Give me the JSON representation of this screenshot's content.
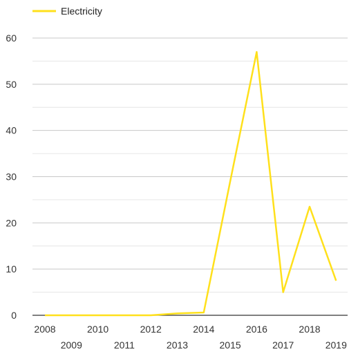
{
  "chart_data": {
    "type": "line",
    "x": [
      "2008",
      "2009",
      "2010",
      "2011",
      "2012",
      "2013",
      "2014",
      "2015",
      "2016",
      "2017",
      "2018",
      "2019"
    ],
    "series": [
      {
        "name": "Electricity",
        "color": "#FFE01B",
        "values": [
          0,
          0,
          0,
          0,
          0,
          0.4,
          0.6,
          29,
          57,
          5,
          23.5,
          7.5
        ]
      }
    ],
    "yticks": [
      0,
      10,
      20,
      30,
      40,
      50,
      60
    ],
    "ylim": [
      0,
      60
    ],
    "grid": true,
    "minor_grid": true,
    "legend": "top-left",
    "title": "",
    "xlabel": "",
    "ylabel": ""
  }
}
